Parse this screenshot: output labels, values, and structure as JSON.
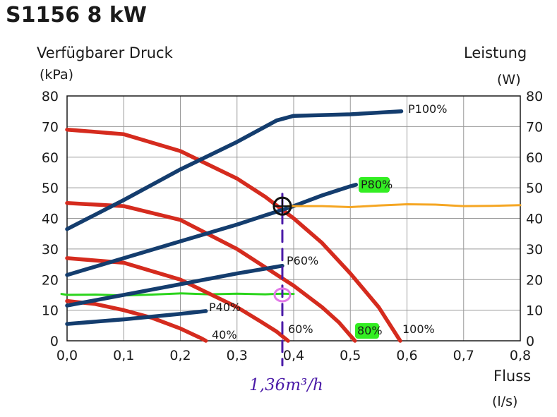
{
  "title": "S1156 8 kW",
  "ylabel_left": "Verfügbarer Druck",
  "yunit_left": "(kPa)",
  "ylabel_right": "Leistung",
  "yunit_right": "(W)",
  "xlabel": "Fluss",
  "xunit": "(l/s)",
  "chart_data": {
    "type": "line",
    "xlim": [
      0,
      0.8
    ],
    "ylim": [
      0,
      80
    ],
    "y2lim": [
      0,
      80
    ],
    "x_ticks": [
      "0,0",
      "0,1",
      "0,2",
      "0,3",
      "0,4",
      "0,5",
      "0,6",
      "0,7",
      "0,8"
    ],
    "y_ticks": [
      "0",
      "10",
      "20",
      "30",
      "40",
      "50",
      "60",
      "70",
      "80"
    ],
    "y2_ticks": [
      "0",
      "10",
      "20",
      "30",
      "40",
      "50",
      "60",
      "70",
      "80"
    ],
    "grid": true,
    "colors": {
      "pressure": "#d52b1e",
      "power": "#143d6e",
      "operating": "#f5a623",
      "marker": "#2bd41c",
      "handwriting": "#4b1ba8",
      "highlight": "#33ee22",
      "circle": "#e27ae8"
    },
    "pressure_series": [
      {
        "name": "100%",
        "axis": "left",
        "x": [
          0.0,
          0.1,
          0.2,
          0.3,
          0.35,
          0.4,
          0.45,
          0.5,
          0.55,
          0.588
        ],
        "y": [
          69,
          67.5,
          62,
          53,
          47,
          40,
          32,
          22,
          11,
          0
        ]
      },
      {
        "name": "80%",
        "axis": "left",
        "x": [
          0.0,
          0.1,
          0.2,
          0.3,
          0.4,
          0.45,
          0.48,
          0.508
        ],
        "y": [
          45,
          44,
          39.5,
          30,
          18,
          11,
          6,
          0
        ]
      },
      {
        "name": "60%",
        "axis": "left",
        "x": [
          0.0,
          0.1,
          0.2,
          0.3,
          0.34,
          0.37,
          0.39
        ],
        "y": [
          27,
          25.5,
          20,
          11,
          6.5,
          3,
          0
        ]
      },
      {
        "name": "40%",
        "axis": "left",
        "x": [
          0.0,
          0.05,
          0.1,
          0.15,
          0.2,
          0.235,
          0.245
        ],
        "y": [
          13,
          12,
          10,
          7.5,
          4,
          1,
          0
        ]
      }
    ],
    "power_series": [
      {
        "name": "P100%",
        "axis": "right",
        "x": [
          0.0,
          0.1,
          0.2,
          0.3,
          0.37,
          0.4,
          0.5,
          0.59
        ],
        "y": [
          36.5,
          46,
          56,
          65,
          72,
          73.5,
          74,
          75
        ]
      },
      {
        "name": "P80%",
        "axis": "right",
        "x": [
          0.0,
          0.1,
          0.2,
          0.3,
          0.4,
          0.45,
          0.5,
          0.51
        ],
        "y": [
          21.5,
          27,
          32.5,
          38,
          44,
          47.5,
          50.5,
          51
        ]
      },
      {
        "name": "P60%",
        "axis": "right",
        "x": [
          0.0,
          0.1,
          0.2,
          0.3,
          0.38
        ],
        "y": [
          11.5,
          15,
          18.5,
          22,
          24.5
        ]
      },
      {
        "name": "P40%",
        "axis": "right",
        "x": [
          0.0,
          0.1,
          0.2,
          0.245
        ],
        "y": [
          5.5,
          7,
          8.8,
          9.7
        ]
      }
    ],
    "annotations": {
      "operating_point": {
        "x": 0.38,
        "y": 44
      },
      "flow_value_label": "1,36m³/h",
      "power_line_x": [
        0.39,
        0.45,
        0.5,
        0.55,
        0.6,
        0.65,
        0.7,
        0.75,
        0.8
      ],
      "power_line_y": [
        44,
        44,
        43.7,
        44.2,
        44.6,
        44.5,
        44,
        44.1,
        44.3
      ],
      "green_line_x": [
        -0.01,
        0.0,
        0.05,
        0.1,
        0.15,
        0.2,
        0.25,
        0.3,
        0.35,
        0.38,
        0.4
      ],
      "green_line_y": [
        15.3,
        15,
        15.1,
        14.8,
        15.1,
        15.5,
        15.2,
        15.4,
        15.2,
        15.4,
        15.3
      ],
      "dashed_marker": {
        "x": 0.38,
        "y_top": 48,
        "y_bottom": -8
      },
      "circle_marker": {
        "x": 0.38,
        "y": 15
      }
    },
    "highlighted_labels": [
      "P80%",
      "80%"
    ]
  }
}
